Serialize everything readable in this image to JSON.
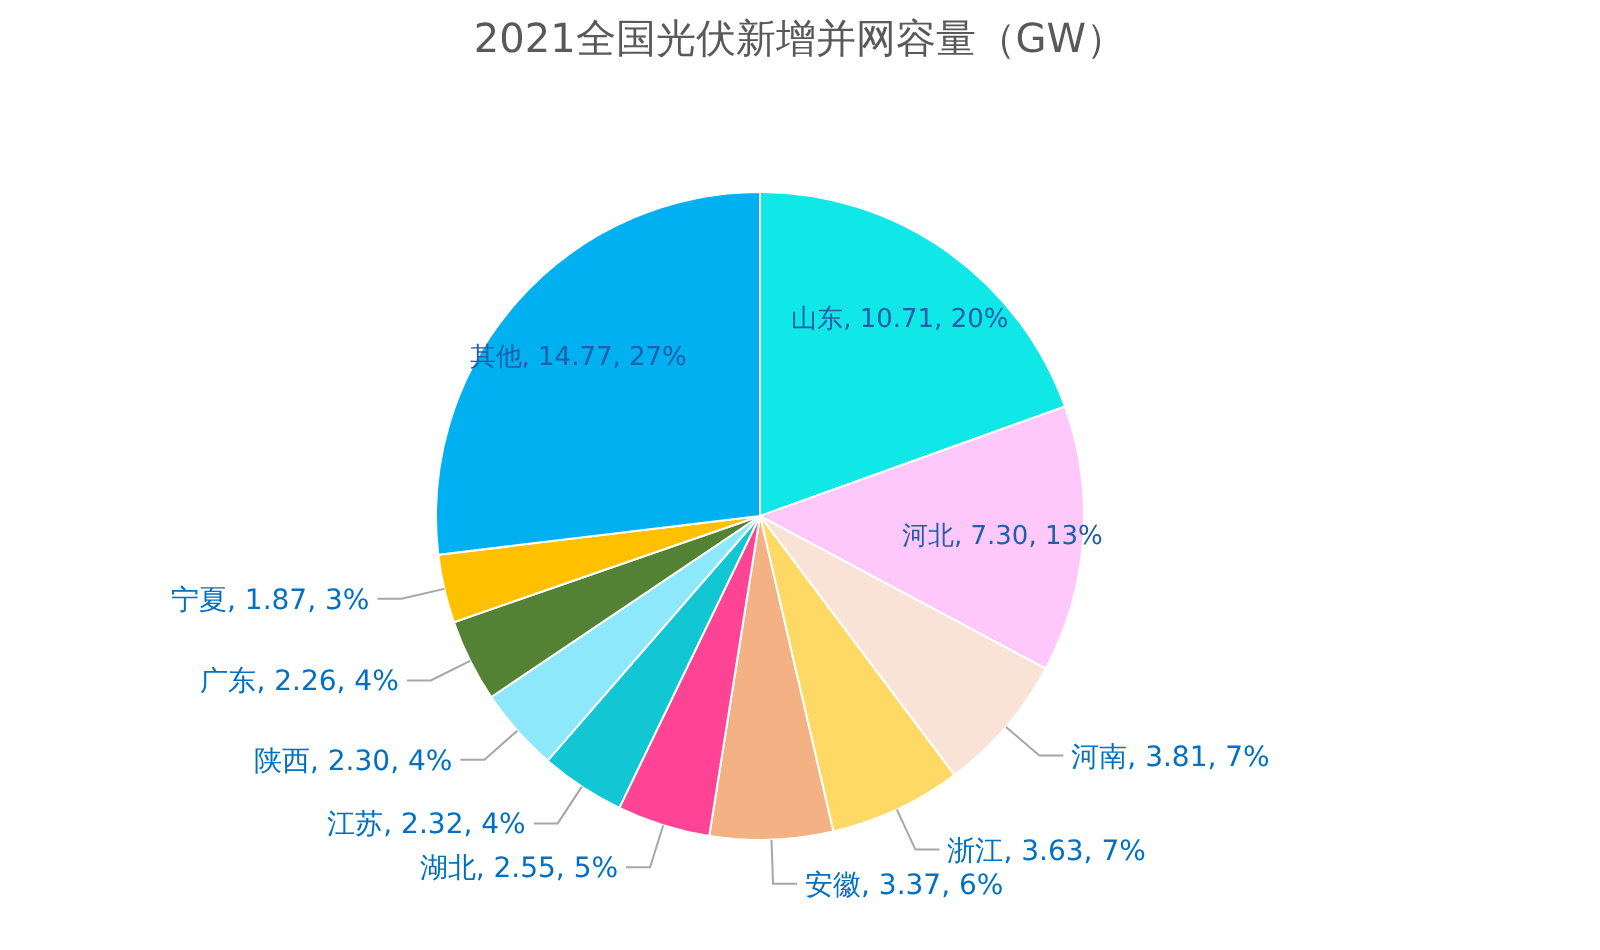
{
  "chart_data": {
    "type": "pie",
    "title": "2021全国光伏新增并网容量（GW）",
    "categories": [
      "山东",
      "河北",
      "河南",
      "浙江",
      "安徽",
      "湖北",
      "江苏",
      "陕西",
      "广东",
      "宁夏",
      "其他"
    ],
    "values": [
      10.71,
      7.3,
      3.81,
      3.63,
      3.37,
      2.55,
      2.32,
      2.3,
      2.26,
      1.87,
      14.77
    ],
    "colors": [
      "#10e8e8",
      "#ffc8fa",
      "#fae3d6",
      "#ffd966",
      "#f4b183",
      "#ff4495",
      "#13c6d4",
      "#8de8fb",
      "#548235",
      "#ffc000",
      "#00b0f0"
    ],
    "value_labels": [
      ", 10.71, 20%",
      ", 7.30, 13%",
      ", 3.81, 7%",
      ", 3.63, 7%",
      ", 3.37, 6%",
      ", 2.55, 5%",
      ", 2.32, 4%",
      ", 2.30, 4%",
      ", 2.26, 4%",
      ", 1.87, 3%",
      ", 14.77, 27%"
    ]
  }
}
